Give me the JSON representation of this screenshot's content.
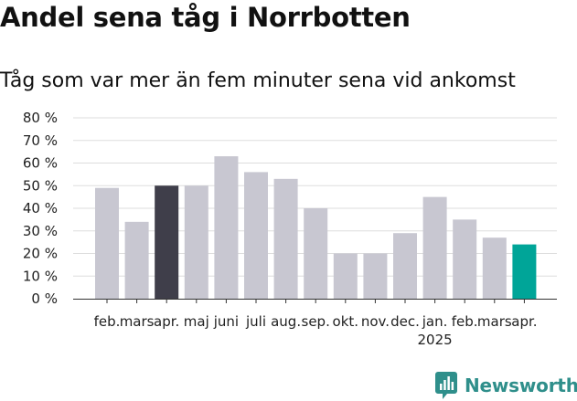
{
  "chart_data": {
    "type": "bar",
    "title": "Andel sena tåg i Norrbotten",
    "subtitle": "Tåg som var mer än fem minuter sena vid ankomst",
    "categories": [
      "feb.",
      "mars",
      "apr.",
      "maj",
      "juni",
      "juli",
      "aug.",
      "sep.",
      "okt.",
      "nov.",
      "dec.",
      "jan.",
      "feb.",
      "mars",
      "apr."
    ],
    "year_labels": [
      {
        "index": 11,
        "label": "2025"
      }
    ],
    "values": [
      49,
      34,
      50,
      50,
      63,
      56,
      53,
      40,
      20,
      20,
      29,
      45,
      35,
      27,
      24
    ],
    "highlight": [
      {
        "index": 2,
        "color": "#3f3e4a"
      },
      {
        "index": 14,
        "color": "#00a598"
      }
    ],
    "bar_color": "#c8c7d1",
    "y_ticks": [
      "0 %",
      "10 %",
      "20 %",
      "30 %",
      "40 %",
      "50 %",
      "60 %",
      "70 %",
      "80 %"
    ],
    "ylim": [
      0,
      80
    ],
    "grid": true,
    "xlabel": "",
    "ylabel": ""
  },
  "brand": {
    "name": "Newsworthy",
    "color": "#2f8f8b",
    "icon": "newsworthy-logo-icon"
  }
}
